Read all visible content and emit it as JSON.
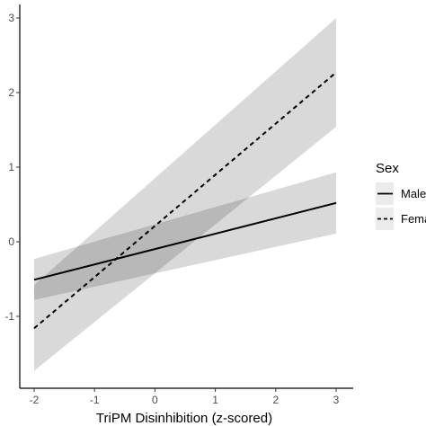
{
  "chart_data": {
    "type": "line",
    "title": "",
    "xlabel": "TriPM Disinhibition (z-scored)",
    "ylabel": "",
    "xlim": [
      -2,
      3
    ],
    "ylim": [
      -1.75,
      3.1
    ],
    "x_ticks": [
      -2,
      -1,
      0,
      1,
      2,
      3
    ],
    "y_ticks": [
      -1,
      0,
      1,
      2,
      3
    ],
    "x_tick_labels": [
      "-2",
      "-1",
      "0",
      "1",
      "2",
      "3"
    ],
    "y_tick_labels": [
      "-1",
      "0",
      "1",
      "2",
      "3"
    ],
    "grid": false,
    "legend": {
      "title": "Sex",
      "placement": "right",
      "entries": [
        "Male",
        "Female"
      ]
    },
    "series": [
      {
        "name": "Male",
        "line_style": "solid",
        "x": [
          -2,
          3
        ],
        "y": [
          -0.51,
          0.52
        ],
        "ci_lower": [
          -0.78,
          0.11
        ],
        "ci_upper": [
          -0.23,
          0.93
        ]
      },
      {
        "name": "Female",
        "line_style": "dashed",
        "x": [
          -2,
          3
        ],
        "y": [
          -1.16,
          2.27
        ],
        "ci_lower": [
          -1.73,
          1.54
        ],
        "ci_upper": [
          -0.58,
          3.0
        ]
      }
    ],
    "colors": {
      "line": "#000000",
      "ribbon": "#d9d9d9",
      "axis": "#000000",
      "tick_label": "#4d4d4d"
    }
  }
}
